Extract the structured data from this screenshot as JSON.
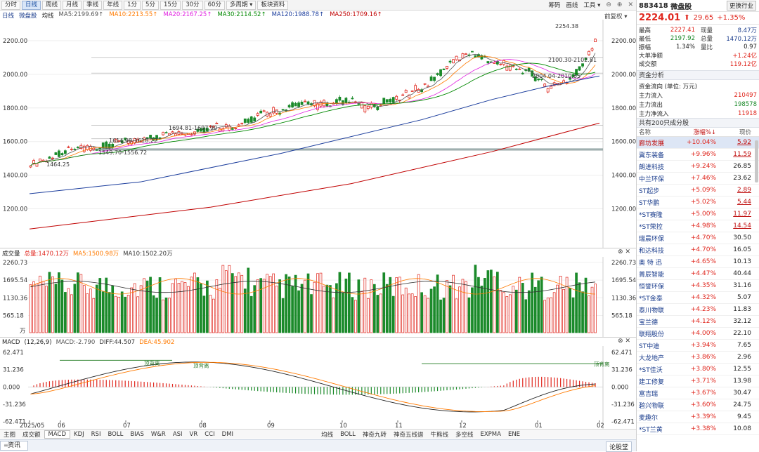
{
  "toolbar": {
    "periods": [
      "分时",
      "日线",
      "周线",
      "月线",
      "季线",
      "年线",
      "1分",
      "5分",
      "15分",
      "30分",
      "60分"
    ],
    "active": "日线",
    "multi": "多周期",
    "f10": "板块资料",
    "right": [
      "筹码",
      "画线",
      "工具"
    ]
  },
  "ma": {
    "label": "日线",
    "name": "微盘股",
    "avg": "均线",
    "items": [
      {
        "text": "MA5:2199.69",
        "color": "#555555"
      },
      {
        "text": "MA10:2213.55",
        "color": "#ff7a00"
      },
      {
        "text": "MA20:2167.25",
        "color": "#e020e0"
      },
      {
        "text": "MA30:2114.52",
        "color": "#008800"
      },
      {
        "text": "MA120:1988.78",
        "color": "#1a3c9c"
      },
      {
        "text": "MA250:1709.16",
        "color": "#c00000"
      }
    ],
    "fq": "前复权"
  },
  "axes": {
    "price": [
      "2200.00",
      "2000.00",
      "1800.00",
      "1600.00",
      "1400.00",
      "1200.00"
    ],
    "vol": [
      "2260.73",
      "1695.54",
      "1130.36",
      "565.18"
    ],
    "volUnit": "万",
    "macd": [
      "62.471",
      "31.236",
      "0.000",
      "-31.236",
      "-62.471"
    ],
    "months": [
      "2025/05",
      "06",
      "07",
      "08",
      "09",
      "10",
      "11",
      "12",
      "01",
      "02"
    ]
  },
  "annotations": [
    "2254.38",
    "2100.30-2102.81",
    "2004.04-2010.65",
    "1694.81-1697.90",
    "1614.98-1618.22",
    "1549.70-1556.72",
    "1464.25"
  ],
  "volhdr": {
    "title": "成交量",
    "total": "总量:1470.12万",
    "ma5": "MA5:1500.98万",
    "ma10": "MA10:1502.20万"
  },
  "macdhdr": {
    "title": "MACD",
    "params": "(12,26,9)",
    "macd": "MACD:-2.790",
    "diff": "DIFF:44.507",
    "dea": "DEA:45.902"
  },
  "macdLabels": [
    "顶背离",
    "顶背离",
    "顶背离"
  ],
  "bottomTabs": [
    "主图",
    "成交额",
    "MACD",
    "KDJ",
    "RSI",
    "BOLL",
    "BIAS",
    "W&R",
    "ASI",
    "VR",
    "CCI",
    "DMI",
    "均线",
    "BOLL",
    "神奇九转",
    "神奇五线谱",
    "牛熊线",
    "多空线",
    "EXPMA",
    "ENE"
  ],
  "status": {
    "tab": "资讯",
    "right": "论股堂"
  },
  "rp": {
    "code": "883418",
    "name": "微盘股",
    "nav": "更换行业",
    "price": "2224.01",
    "change": "29.65",
    "pct": "+1.35%",
    "quote": [
      {
        "k": "最高",
        "v": "2227.41",
        "k2": "现量",
        "v2": "8.47万"
      },
      {
        "k": "最低",
        "v": "2197.92",
        "k2": "总量",
        "v2": "1470.12万"
      },
      {
        "k": "振幅",
        "v": "1.34%",
        "k2": "量比",
        "v2": "0.97"
      }
    ],
    "net1": {
      "k": "大单净额",
      "v": "+1.24亿"
    },
    "turnover": {
      "k": "成交额",
      "v": "119.12亿"
    },
    "fund": "资金分析",
    "flowTitle": "资金流向 (单位: 万元)",
    "flows": [
      {
        "k": "主力流入",
        "v": "210497"
      },
      {
        "k": "主力流出",
        "v": "198578"
      },
      {
        "k": "主力净流入",
        "v": "11918"
      }
    ],
    "count": "共有200只成分股",
    "cols": [
      "名称",
      "涨幅%↓",
      "现价"
    ],
    "stocks": [
      [
        "廊坊发展",
        "+10.04%",
        "5.92"
      ],
      [
        "冀东装备",
        "+9.96%",
        "11.59"
      ],
      [
        "朗进科技",
        "+9.24%",
        "26.85"
      ],
      [
        "中兰环保",
        "+7.46%",
        "23.62"
      ],
      [
        "ST起步",
        "+5.09%",
        "2.89"
      ],
      [
        "ST华鹏",
        "+5.02%",
        "5.44"
      ],
      [
        "*ST赛隆",
        "+5.00%",
        "11.97"
      ],
      [
        "*ST荣控",
        "+4.98%",
        "14.54"
      ],
      [
        "瑞晨环保",
        "+4.70%",
        "30.50"
      ],
      [
        "和达科技",
        "+4.70%",
        "16.05"
      ],
      [
        "奥 特 迅",
        "+4.65%",
        "10.13"
      ],
      [
        "菁辰智能",
        "+4.47%",
        "40.44"
      ],
      [
        "恒誉环保",
        "+4.35%",
        "31.16"
      ],
      [
        "*ST金泰",
        "+4.32%",
        "5.07"
      ],
      [
        "泰川物联",
        "+4.23%",
        "11.83"
      ],
      [
        "宝兰德",
        "+4.12%",
        "32.12"
      ],
      [
        "联翔股份",
        "+4.00%",
        "22.10"
      ],
      [
        "ST中迪",
        "+3.94%",
        "7.65"
      ],
      [
        "大龙地产",
        "+3.86%",
        "2.96"
      ],
      [
        "*ST佳沃",
        "+3.80%",
        "12.55"
      ],
      [
        "建工修复",
        "+3.71%",
        "13.98"
      ],
      [
        "富吉瑞",
        "+3.67%",
        "30.47"
      ],
      [
        "碧兴物联",
        "+3.60%",
        "24.75"
      ],
      [
        "麦趣尔",
        "+3.39%",
        "9.45"
      ],
      [
        "*ST兰黄",
        "+3.38%",
        "10.08"
      ]
    ]
  }
}
